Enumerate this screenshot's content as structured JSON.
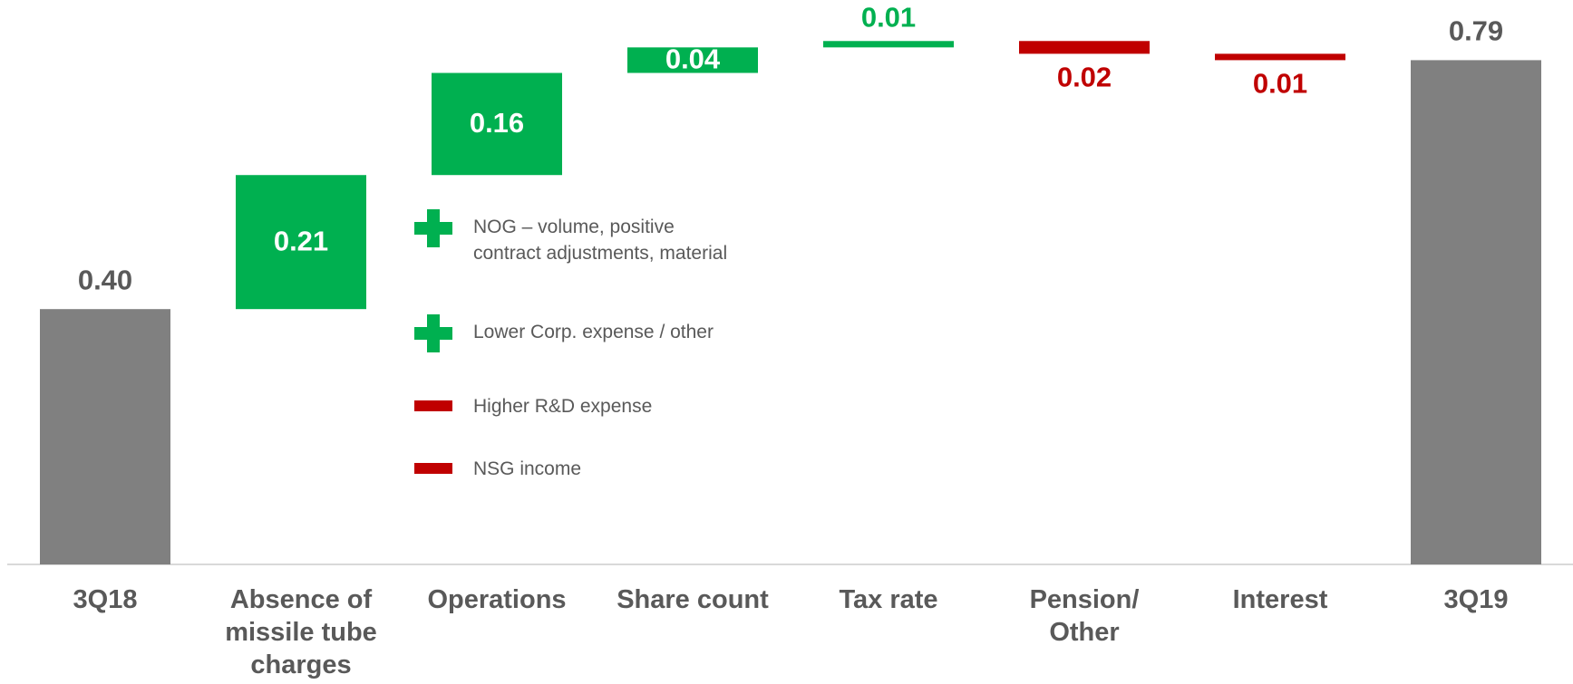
{
  "chart_data": {
    "type": "waterfall",
    "categories": [
      "3Q18",
      "Absence of missile tube charges",
      "Operations",
      "Share count",
      "Tax rate",
      "Pension/ Other",
      "Interest",
      "3Q19"
    ],
    "values": [
      0.4,
      0.21,
      0.16,
      0.04,
      0.01,
      -0.02,
      -0.01,
      0.79
    ],
    "value_labels": [
      "0.40",
      "0.21",
      "0.16",
      "0.04",
      "0.01",
      "0.02",
      "0.01",
      "0.79"
    ],
    "is_total": [
      true,
      false,
      false,
      false,
      false,
      false,
      false,
      true
    ],
    "colors": {
      "total": "#808080",
      "increase": "#00b050",
      "decrease": "#c00000"
    },
    "ylim": [
      0,
      0.88
    ],
    "annotations": [
      {
        "text": "NOG – volume, positive contract adjustments, material",
        "icon": "plus",
        "color": "#00b050"
      },
      {
        "text": "Lower Corp. expense / other",
        "icon": "plus",
        "color": "#00b050"
      },
      {
        "text": "Higher R&D expense",
        "icon": "minus",
        "color": "#c00000"
      },
      {
        "text": "NSG income",
        "icon": "minus",
        "color": "#c00000"
      }
    ]
  }
}
